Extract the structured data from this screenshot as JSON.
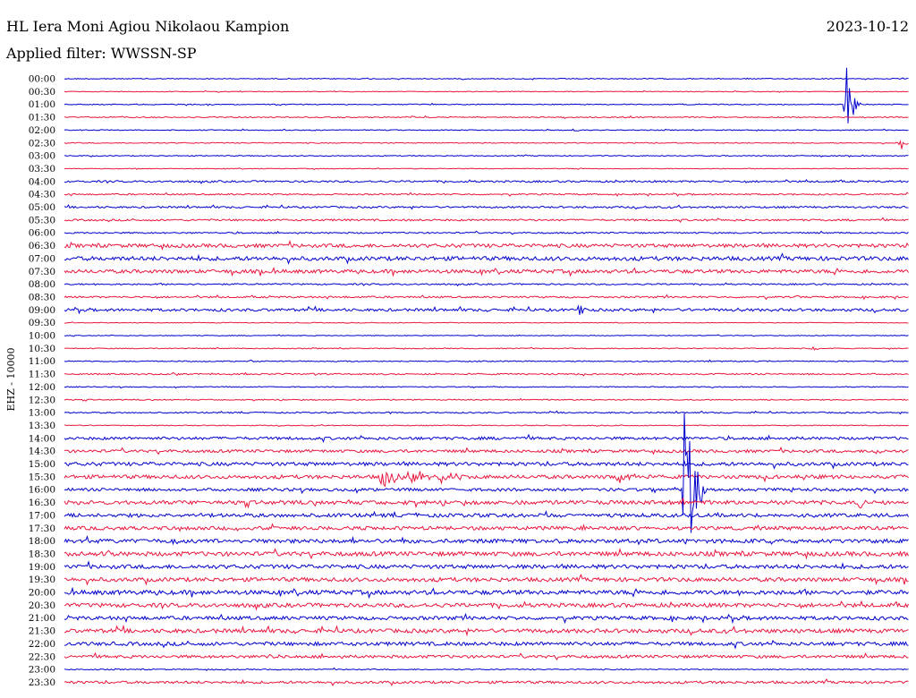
{
  "header": {
    "station": "HL Iera Moni Agiou Nikolaou Kampion",
    "date": "2023-10-12",
    "filter": "Applied filter: WWSSN-SP",
    "channel": "EHZ - 10000"
  },
  "colors": {
    "blue_trace": "#0000cc",
    "red_trace": "#e8173e"
  },
  "chart_data": {
    "type": "line",
    "title": "HL Iera Moni Agiou Nikolaou Kampion",
    "subtitle": "Applied filter: WWSSN-SP",
    "ylabel": "EHZ - 10000",
    "xlabel": "",
    "grid": false,
    "trace_minutes": 30,
    "colors_alternate": [
      "blue",
      "red"
    ],
    "rows": [
      {
        "label": "00:00",
        "noise": 0.5,
        "events": []
      },
      {
        "label": "00:30",
        "noise": 0.4,
        "events": []
      },
      {
        "label": "01:00",
        "noise": 0.5,
        "events": [
          {
            "t": 0.925,
            "amp": 54,
            "dur": 0.02
          }
        ]
      },
      {
        "label": "01:30",
        "noise": 0.6,
        "events": [
          {
            "t": 0.41,
            "amp": 2,
            "dur": 0.02
          }
        ]
      },
      {
        "label": "02:00",
        "noise": 0.5,
        "events": [
          {
            "t": 0.603,
            "amp": 7,
            "dur": 0.006
          }
        ]
      },
      {
        "label": "02:30",
        "noise": 0.5,
        "events": [
          {
            "t": 0.99,
            "amp": 10,
            "dur": 0.01
          }
        ]
      },
      {
        "label": "03:00",
        "noise": 0.5,
        "events": []
      },
      {
        "label": "03:30",
        "noise": 0.4,
        "events": []
      },
      {
        "label": "04:00",
        "noise": 1.0,
        "events": []
      },
      {
        "label": "04:30",
        "noise": 0.8,
        "events": []
      },
      {
        "label": "05:00",
        "noise": 1.0,
        "events": []
      },
      {
        "label": "05:30",
        "noise": 1.0,
        "events": [
          {
            "t": 0.913,
            "amp": 3,
            "dur": 0.005
          }
        ]
      },
      {
        "label": "06:00",
        "noise": 0.8,
        "events": []
      },
      {
        "label": "06:30",
        "noise": 2.0,
        "events": []
      },
      {
        "label": "07:00",
        "noise": 2.2,
        "events": []
      },
      {
        "label": "07:30",
        "noise": 2.0,
        "events": []
      },
      {
        "label": "08:00",
        "noise": 0.8,
        "events": []
      },
      {
        "label": "08:30",
        "noise": 1.0,
        "events": [
          {
            "t": 0.86,
            "amp": 3,
            "dur": 0.02
          }
        ]
      },
      {
        "label": "09:00",
        "noise": 1.5,
        "events": [
          {
            "t": 0.61,
            "amp": 9,
            "dur": 0.01
          },
          {
            "t": 0.797,
            "amp": 5,
            "dur": 0.004
          }
        ]
      },
      {
        "label": "09:30",
        "noise": 0.4,
        "events": []
      },
      {
        "label": "10:00",
        "noise": 0.4,
        "events": []
      },
      {
        "label": "10:30",
        "noise": 0.5,
        "events": [
          {
            "t": 0.887,
            "amp": 6,
            "dur": 0.008
          }
        ]
      },
      {
        "label": "11:00",
        "noise": 0.6,
        "events": []
      },
      {
        "label": "11:30",
        "noise": 0.8,
        "events": []
      },
      {
        "label": "12:00",
        "noise": 0.5,
        "events": []
      },
      {
        "label": "12:30",
        "noise": 0.6,
        "events": []
      },
      {
        "label": "13:00",
        "noise": 0.7,
        "events": [
          {
            "t": 0.385,
            "amp": 3,
            "dur": 0.01
          }
        ]
      },
      {
        "label": "13:30",
        "noise": 0.5,
        "events": []
      },
      {
        "label": "14:00",
        "noise": 1.6,
        "events": []
      },
      {
        "label": "14:30",
        "noise": 1.6,
        "events": [
          {
            "t": 0.96,
            "amp": 6,
            "dur": 0.01
          }
        ]
      },
      {
        "label": "15:00",
        "noise": 2.0,
        "events": []
      },
      {
        "label": "15:30",
        "noise": 2.0,
        "events": [
          {
            "t": 0.375,
            "amp": 14,
            "dur": 0.04
          },
          {
            "t": 0.41,
            "amp": 13,
            "dur": 0.04
          },
          {
            "t": 0.443,
            "amp": 10,
            "dur": 0.04
          },
          {
            "t": 0.655,
            "amp": 10,
            "dur": 0.03
          }
        ]
      },
      {
        "label": "16:00",
        "noise": 1.6,
        "events": [
          {
            "t": 0.733,
            "amp": 116,
            "dur": 0.03
          },
          {
            "t": 0.86,
            "amp": 4,
            "dur": 0.01
          }
        ]
      },
      {
        "label": "16:30",
        "noise": 2.2,
        "events": [
          {
            "t": 0.94,
            "amp": 8,
            "dur": 0.02
          }
        ]
      },
      {
        "label": "17:00",
        "noise": 2.0,
        "events": []
      },
      {
        "label": "17:30",
        "noise": 2.0,
        "events": []
      },
      {
        "label": "18:00",
        "noise": 2.2,
        "events": []
      },
      {
        "label": "18:30",
        "noise": 2.4,
        "events": [
          {
            "t": 0.053,
            "amp": 10,
            "dur": 0.01
          }
        ]
      },
      {
        "label": "19:00",
        "noise": 2.2,
        "events": []
      },
      {
        "label": "19:30",
        "noise": 2.2,
        "events": []
      },
      {
        "label": "20:00",
        "noise": 2.4,
        "events": []
      },
      {
        "label": "20:30",
        "noise": 2.2,
        "events": []
      },
      {
        "label": "21:00",
        "noise": 2.0,
        "events": []
      },
      {
        "label": "21:30",
        "noise": 2.2,
        "events": []
      },
      {
        "label": "22:00",
        "noise": 2.0,
        "events": []
      },
      {
        "label": "22:30",
        "noise": 1.6,
        "events": [
          {
            "t": 0.24,
            "amp": 3,
            "dur": 0.03
          }
        ]
      },
      {
        "label": "23:00",
        "noise": 0.6,
        "events": []
      },
      {
        "label": "23:30",
        "noise": 1.4,
        "events": []
      }
    ]
  }
}
